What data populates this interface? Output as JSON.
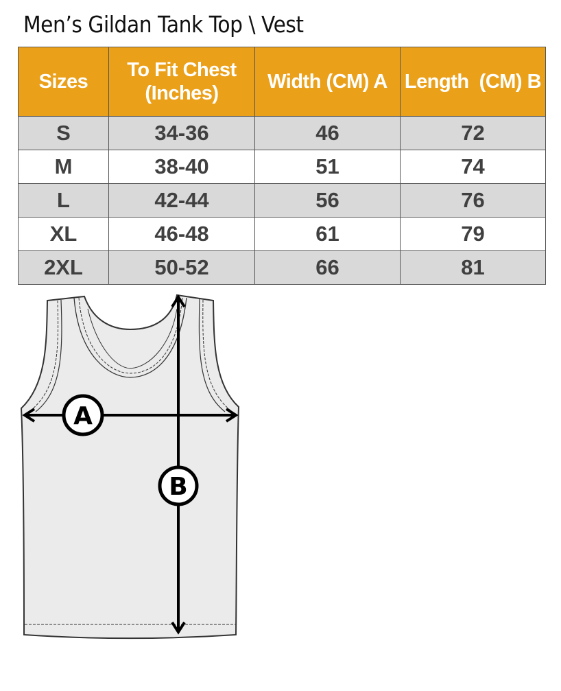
{
  "title": "Men’s Gildan Tank Top \\ Vest",
  "table": {
    "headers": [
      "Sizes",
      "To Fit Chest (Inches)",
      "Width (CM) A",
      "Length  (CM) B"
    ],
    "rows": [
      [
        "S",
        "34-36",
        "46",
        "72"
      ],
      [
        "M",
        "38-40",
        "51",
        "74"
      ],
      [
        "L",
        "42-44",
        "56",
        "76"
      ],
      [
        "XL",
        "46-48",
        "61",
        "79"
      ],
      [
        "2XL",
        "50-52",
        "66",
        "81"
      ]
    ]
  },
  "diagram": {
    "label_a": "A",
    "label_b": "B"
  },
  "colors": {
    "header": "#EBA01A",
    "stripe": "#D9D9D9",
    "text": "#404040"
  }
}
